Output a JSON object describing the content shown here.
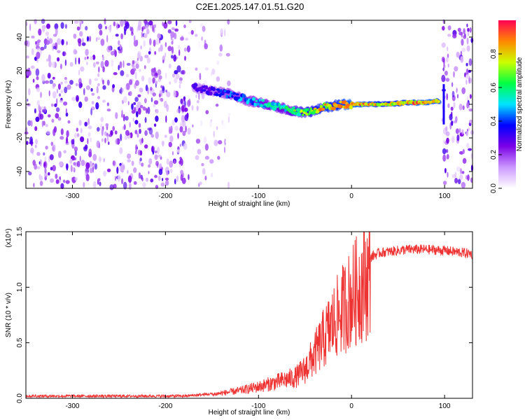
{
  "title": "C2E1.2025.147.01.51.G20",
  "chart_data": [
    {
      "type": "heatmap",
      "xlabel": "Height of straight line (km)",
      "ylabel": "Frequency (Hz)",
      "xlim": [
        -350,
        130
      ],
      "ylim": [
        -50,
        50
      ],
      "xticks": [
        -300,
        -200,
        -100,
        0,
        100
      ],
      "yticks": [
        -40,
        -20,
        0,
        20,
        40
      ],
      "colorbar": {
        "label": "Normalized spectral amplitude",
        "range": [
          0,
          1
        ],
        "ticks": [
          "0.0",
          "0.2",
          "0.4",
          "0.6",
          "0.8"
        ],
        "colormap": [
          "#ffffff",
          "#cc99ff",
          "#7b00e6",
          "#0000ff",
          "#00e5ff",
          "#00ff44",
          "#ccff00",
          "#ff8800",
          "#ff0055"
        ]
      },
      "noise_regions": [
        {
          "x_range": [
            -350,
            -175
          ],
          "density": "high"
        },
        {
          "x_range": [
            -175,
            -130
          ],
          "density": "medium"
        },
        {
          "x_range": [
            98,
            130
          ],
          "density": "high"
        }
      ],
      "signal_track": {
        "x": [
          -170,
          -150,
          -130,
          -110,
          -90,
          -70,
          -50,
          -40,
          -30,
          -20,
          -10,
          0,
          20,
          40,
          60,
          80,
          95
        ],
        "frequency": [
          10,
          8,
          6,
          2,
          0,
          -3,
          -5,
          -4,
          -2,
          -1,
          0,
          0,
          0,
          0,
          1,
          1,
          2
        ],
        "amplitude": [
          0.3,
          0.35,
          0.45,
          0.5,
          0.55,
          0.6,
          0.75,
          0.8,
          0.9,
          0.85,
          0.9,
          0.95,
          0.9,
          0.85,
          0.9,
          0.95,
          0.9
        ]
      }
    },
    {
      "type": "line",
      "xlabel": "Height of straight line (km)",
      "ylabel": "SNR (10 * v/v)",
      "yscale_label": "(x10⁴)",
      "xlim": [
        -350,
        130
      ],
      "ylim": [
        0,
        1.5
      ],
      "xticks": [
        -300,
        -200,
        -100,
        0,
        100
      ],
      "yticks": [
        "0.0",
        "0.5",
        "1.0",
        "1.5"
      ],
      "series": [
        {
          "color": "#ee3333",
          "x": [
            -350,
            -250,
            -180,
            -150,
            -120,
            -100,
            -80,
            -60,
            -50,
            -40,
            -30,
            -20,
            -10,
            0,
            10,
            20,
            30,
            40,
            60,
            80,
            100,
            120,
            130
          ],
          "y": [
            0.02,
            0.02,
            0.02,
            0.04,
            0.08,
            0.12,
            0.17,
            0.22,
            0.3,
            0.45,
            0.62,
            0.78,
            0.92,
            1.05,
            1.18,
            1.27,
            1.31,
            1.32,
            1.34,
            1.34,
            1.33,
            1.31,
            1.3
          ]
        }
      ]
    }
  ]
}
